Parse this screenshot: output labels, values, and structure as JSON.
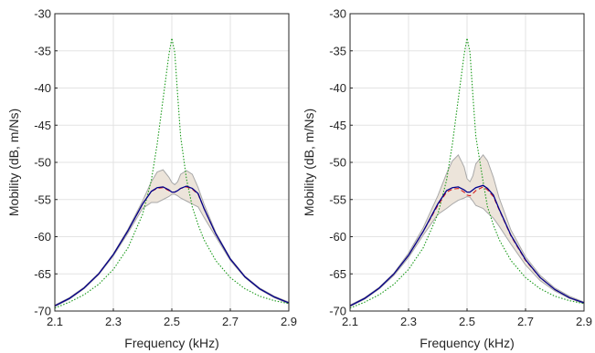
{
  "chart_data": [
    {
      "type": "line",
      "xlabel": "Frequency (kHz)",
      "ylabel": "Mobility (dB, m/Ns)",
      "xlim": [
        2.1,
        2.9
      ],
      "ylim": [
        -70,
        -30
      ],
      "xticks": [
        "2.1",
        "2.3",
        "2.5",
        "2.7",
        "2.9"
      ],
      "yticks": [
        "-30",
        "-35",
        "-40",
        "-45",
        "-50",
        "-55",
        "-60",
        "-65",
        "-70"
      ],
      "grid": true,
      "colors": {
        "band_fill": "#ece4da",
        "band_edge": "#a8a8a8",
        "green": "#1a9a1a",
        "red": "#d42020",
        "blue": "#00008b",
        "grid": "#e3e3e3"
      },
      "x": [
        2.1,
        2.15,
        2.2,
        2.25,
        2.3,
        2.35,
        2.4,
        2.43,
        2.45,
        2.47,
        2.49,
        2.5,
        2.51,
        2.52,
        2.53,
        2.55,
        2.57,
        2.59,
        2.61,
        2.65,
        2.7,
        2.75,
        2.8,
        2.85,
        2.9
      ],
      "band": {
        "upper": [
          -69.2,
          -68.2,
          -66.8,
          -64.9,
          -62.3,
          -59.0,
          -55.2,
          -52.6,
          -51.3,
          -51.0,
          -52.0,
          -52.7,
          -53.0,
          -52.6,
          -51.6,
          -51.1,
          -51.6,
          -53.4,
          -55.6,
          -59.4,
          -62.9,
          -65.3,
          -66.9,
          -68.0,
          -68.8
        ],
        "lower": [
          -69.4,
          -68.4,
          -67.0,
          -65.1,
          -62.6,
          -59.5,
          -56.2,
          -55.4,
          -55.4,
          -55.0,
          -54.6,
          -54.3,
          -54.3,
          -54.5,
          -54.8,
          -55.2,
          -55.6,
          -56.0,
          -57.4,
          -60.0,
          -63.2,
          -65.5,
          -67.1,
          -68.2,
          -69.0
        ]
      },
      "series": [
        {
          "style": "dotted",
          "color": "green",
          "values": [
            -69.6,
            -68.8,
            -67.8,
            -66.4,
            -64.4,
            -61.5,
            -57.0,
            -52.4,
            -47.5,
            -41.5,
            -35.5,
            -33.3,
            -35.2,
            -41.0,
            -46.5,
            -52.2,
            -56.0,
            -58.4,
            -60.4,
            -63.2,
            -65.5,
            -67.0,
            -68.0,
            -68.6,
            -69.0
          ]
        },
        {
          "style": "dashed",
          "color": "red",
          "values": [
            -69.3,
            -68.3,
            -66.9,
            -65.0,
            -62.4,
            -59.2,
            -55.6,
            -53.9,
            -53.5,
            -53.4,
            -53.8,
            -54.0,
            -54.0,
            -53.8,
            -53.5,
            -53.3,
            -53.6,
            -54.3,
            -56.2,
            -59.6,
            -63.0,
            -65.4,
            -67.0,
            -68.1,
            -68.9
          ]
        },
        {
          "style": "solid",
          "color": "blue",
          "values": [
            -69.3,
            -68.3,
            -66.9,
            -65.0,
            -62.4,
            -59.2,
            -55.6,
            -53.9,
            -53.4,
            -53.3,
            -53.7,
            -54.0,
            -54.0,
            -53.8,
            -53.5,
            -53.2,
            -53.5,
            -54.2,
            -56.2,
            -59.6,
            -63.0,
            -65.4,
            -67.0,
            -68.1,
            -68.9
          ]
        }
      ]
    },
    {
      "type": "line",
      "xlabel": "Frequency (kHz)",
      "ylabel": "Mobility (dB, m/Ns)",
      "xlim": [
        2.1,
        2.9
      ],
      "ylim": [
        -70,
        -30
      ],
      "xticks": [
        "2.1",
        "2.3",
        "2.5",
        "2.7",
        "2.9"
      ],
      "yticks": [
        "-30",
        "-35",
        "-40",
        "-45",
        "-50",
        "-55",
        "-60",
        "-65",
        "-70"
      ],
      "grid": true,
      "colors": {
        "band_fill": "#ece4da",
        "band_edge": "#a8a8a8",
        "green": "#1a9a1a",
        "red": "#d42020",
        "blue": "#00008b",
        "grid": "#e3e3e3"
      },
      "x": [
        2.1,
        2.15,
        2.2,
        2.25,
        2.3,
        2.35,
        2.4,
        2.43,
        2.45,
        2.47,
        2.49,
        2.5,
        2.51,
        2.52,
        2.53,
        2.555,
        2.57,
        2.59,
        2.61,
        2.65,
        2.7,
        2.75,
        2.8,
        2.85,
        2.9
      ],
      "band": {
        "upper": [
          -69.2,
          -68.2,
          -66.8,
          -64.9,
          -62.2,
          -58.8,
          -54.5,
          -51.5,
          -49.8,
          -49.0,
          -50.6,
          -52.2,
          -52.6,
          -51.8,
          -50.2,
          -49.0,
          -49.8,
          -52.0,
          -54.8,
          -59.1,
          -62.7,
          -65.2,
          -66.9,
          -68.0,
          -68.8
        ],
        "lower": [
          -69.4,
          -68.4,
          -67.0,
          -65.2,
          -62.8,
          -59.8,
          -57.0,
          -56.2,
          -55.6,
          -55.1,
          -54.8,
          -54.6,
          -54.7,
          -55.2,
          -55.8,
          -56.2,
          -56.8,
          -57.5,
          -58.6,
          -61.0,
          -63.8,
          -65.9,
          -67.3,
          -68.3,
          -69.0
        ]
      },
      "series": [
        {
          "style": "dotted",
          "color": "green",
          "values": [
            -69.6,
            -68.8,
            -67.8,
            -66.4,
            -64.4,
            -61.5,
            -57.0,
            -52.4,
            -47.5,
            -41.5,
            -35.5,
            -33.3,
            -35.2,
            -41.0,
            -46.5,
            -52.6,
            -56.0,
            -58.4,
            -60.4,
            -63.2,
            -65.5,
            -67.0,
            -68.0,
            -68.6,
            -69.0
          ]
        },
        {
          "style": "dashed",
          "color": "red",
          "values": [
            -69.3,
            -68.3,
            -66.9,
            -65.0,
            -62.5,
            -59.3,
            -55.8,
            -54.0,
            -53.6,
            -53.5,
            -54.0,
            -54.4,
            -54.5,
            -54.2,
            -53.8,
            -53.3,
            -53.7,
            -54.6,
            -56.4,
            -59.9,
            -63.2,
            -65.5,
            -67.1,
            -68.2,
            -68.9
          ]
        },
        {
          "style": "solid",
          "color": "blue",
          "values": [
            -69.3,
            -68.3,
            -66.9,
            -65.0,
            -62.5,
            -59.3,
            -55.6,
            -53.8,
            -53.4,
            -53.3,
            -53.7,
            -54.0,
            -54.0,
            -53.7,
            -53.4,
            -53.1,
            -53.5,
            -54.4,
            -56.3,
            -59.8,
            -63.1,
            -65.5,
            -67.1,
            -68.2,
            -68.9
          ]
        }
      ]
    }
  ]
}
